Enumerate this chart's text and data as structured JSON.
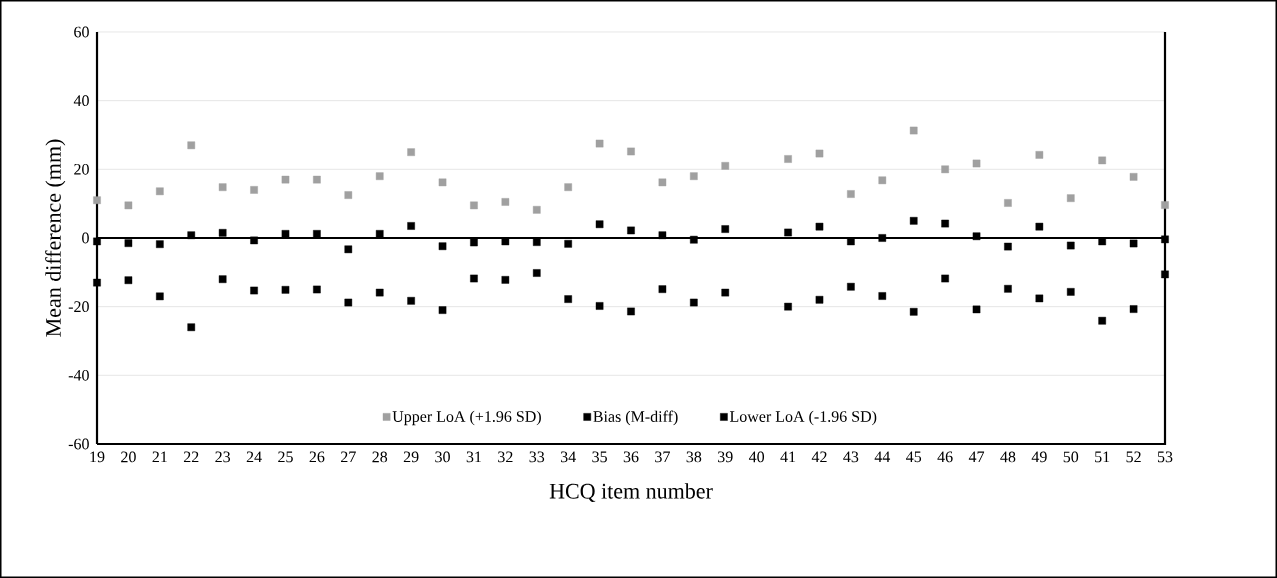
{
  "chart_data": {
    "type": "scatter",
    "xlabel": "HCQ item number",
    "ylabel": "Mean difference (mm)",
    "categories": [
      "19",
      "20",
      "21",
      "22",
      "23",
      "24",
      "25",
      "26",
      "27",
      "28",
      "29",
      "30",
      "31",
      "32",
      "33",
      "34",
      "35",
      "36",
      "37",
      "38",
      "39",
      "40",
      "41",
      "42",
      "43",
      "44",
      "45",
      "46",
      "47",
      "48",
      "49",
      "50",
      "51",
      "52",
      "53"
    ],
    "series": [
      {
        "name": "Upper LoA (+1.96 SD)",
        "color": "#a0a0a0",
        "marker": "square",
        "values": [
          11,
          9.5,
          13.6,
          27,
          14.8,
          14,
          17,
          17,
          12.5,
          18,
          25,
          16.2,
          9.5,
          10.5,
          8.2,
          14.8,
          27.5,
          25.2,
          16.2,
          18,
          21,
          null,
          23,
          24.6,
          12.8,
          16.8,
          31.3,
          20,
          21.7,
          10.2,
          24.2,
          11.6,
          22.6,
          17.8,
          9.6
        ]
      },
      {
        "name": "Bias (M-diff)",
        "color": "#000000",
        "marker": "square",
        "values": [
          -1,
          -1.5,
          -1.8,
          0.8,
          1.5,
          -0.7,
          1.2,
          1.2,
          -3.3,
          1.2,
          3.5,
          -2.4,
          -1.3,
          -1,
          -1.2,
          -1.7,
          4,
          2.2,
          0.8,
          -0.5,
          2.6,
          null,
          1.6,
          3.3,
          -1,
          0,
          5,
          4.2,
          0.5,
          -2.5,
          3.3,
          -2.2,
          -1,
          -1.6,
          -0.4
        ]
      },
      {
        "name": "Lower LoA (-1.96 SD)",
        "color": "#000000",
        "marker": "square",
        "values": [
          -13,
          -12.3,
          -17,
          -26,
          -12,
          -15.3,
          -15.1,
          -15,
          -18.8,
          -15.9,
          -18.3,
          -21,
          -11.8,
          -12.2,
          -10.2,
          -17.8,
          -19.8,
          -21.4,
          -14.9,
          -18.8,
          -15.9,
          null,
          -20,
          -18,
          -14.2,
          -16.9,
          -21.5,
          -11.8,
          -20.8,
          -14.8,
          -17.6,
          -15.7,
          -24.1,
          -20.7,
          -10.6
        ]
      }
    ],
    "ylim": [
      -60,
      60
    ],
    "yticks": [
      -60,
      -40,
      -20,
      0,
      20,
      40,
      60
    ],
    "grid": "y",
    "legend": "bottom"
  }
}
